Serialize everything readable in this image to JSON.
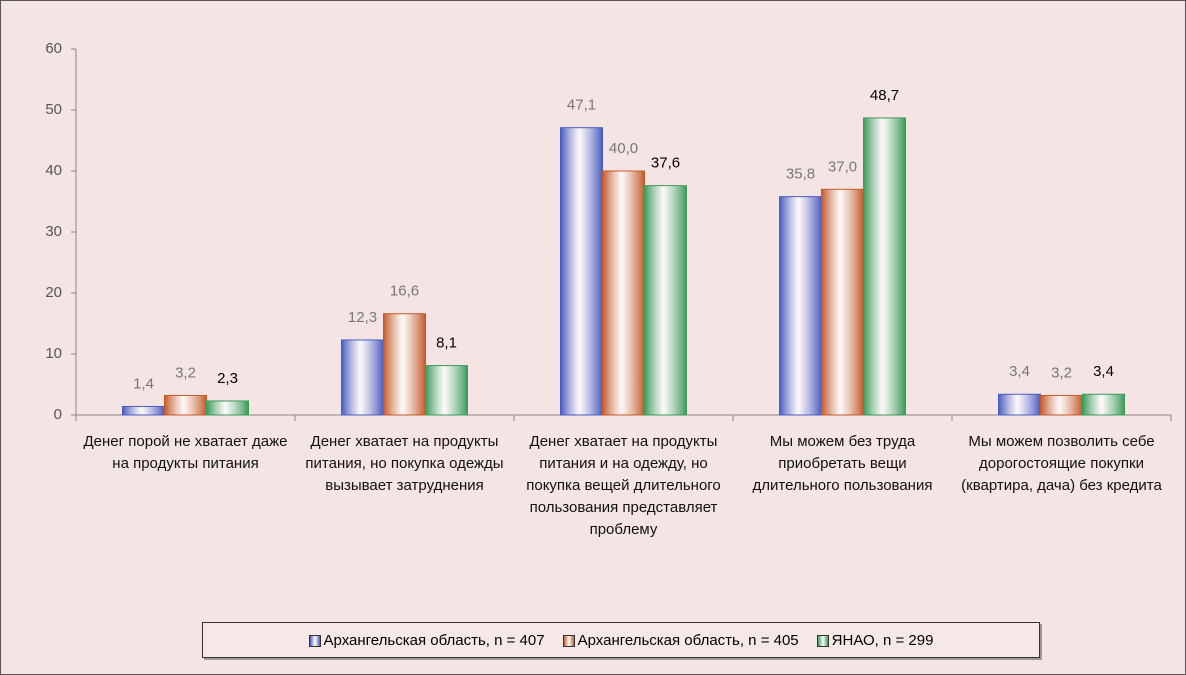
{
  "chart_data": {
    "type": "bar",
    "categories": [
      "Денег порой не хватает даже на продукты питания",
      "Денег хватает на продукты питания, но покупка одежды вызывает затруднения",
      "Денег хватает на продукты питания и на одежду, но покупка вещей длительного пользования представляет проблему",
      "Мы можем без труда приобретать вещи длительного пользования",
      "Мы можем позволить себе дорогостоящие покупки (квартира, дача) без кредита"
    ],
    "series": [
      {
        "name": "Архангельская область, n = 407",
        "color": "#4a5cc0",
        "values": [
          1.4,
          12.3,
          47.1,
          35.8,
          3.4
        ],
        "value_labels": [
          "1,4",
          "12,3",
          "47,1",
          "35,8",
          "3,4"
        ]
      },
      {
        "name": "Архангельская область, n = 405",
        "color": "#c45a2a",
        "values": [
          3.2,
          16.6,
          40.0,
          37.0,
          3.2
        ],
        "value_labels": [
          "3,2",
          "16,6",
          "40,0",
          "37,0",
          "3,2"
        ]
      },
      {
        "name": "ЯНАО, n = 299",
        "color": "#3a9a5a",
        "values": [
          2.3,
          8.1,
          37.6,
          48.7,
          3.4
        ],
        "value_labels": [
          "2,3",
          "8,1",
          "37,6",
          "48,7",
          "3,4"
        ]
      }
    ],
    "ylim": [
      0,
      60
    ],
    "yticks": [
      0,
      10,
      20,
      30,
      40,
      50,
      60
    ],
    "legend": "bottom"
  }
}
